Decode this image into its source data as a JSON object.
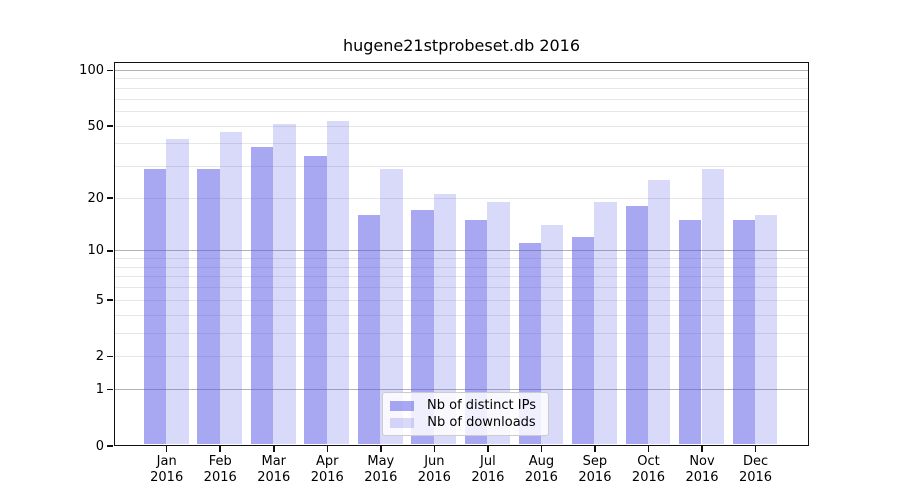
{
  "title": "hugene21stprobeset.db 2016",
  "chart_data": {
    "type": "bar",
    "title": "hugene21stprobeset.db 2016",
    "y_scale": "log10(1+x)",
    "ylim": [
      0,
      111
    ],
    "grid": "on",
    "categories": [
      "Jan",
      "Feb",
      "Mar",
      "Apr",
      "May",
      "Jun",
      "Jul",
      "Aug",
      "Sep",
      "Oct",
      "Nov",
      "Dec"
    ],
    "year": "2016",
    "series": [
      {
        "name": "Nb of distinct IPs",
        "color": "#5050e6",
        "alpha": 0.5,
        "values": [
          29,
          29,
          38,
          34,
          16,
          17,
          15,
          11,
          12,
          18,
          15,
          15
        ]
      },
      {
        "name": "Nb of downloads",
        "color": "#5050e6",
        "alpha": 0.22,
        "values": [
          42,
          46,
          51,
          53,
          29,
          21,
          19,
          14,
          19,
          25,
          29,
          16
        ]
      }
    ],
    "y_ticks_labeled": [
      100,
      50,
      20,
      10,
      5,
      2,
      1,
      0
    ],
    "gridlines_major": [
      1,
      10,
      100
    ],
    "gridlines_minor": [
      2,
      3,
      4,
      5,
      6,
      7,
      8,
      9,
      20,
      30,
      40,
      50,
      60,
      70,
      80,
      90
    ],
    "grid_color_major": "#b2b2b2",
    "grid_color_minor": "#e6e6e6",
    "legend_position": "lower center"
  }
}
